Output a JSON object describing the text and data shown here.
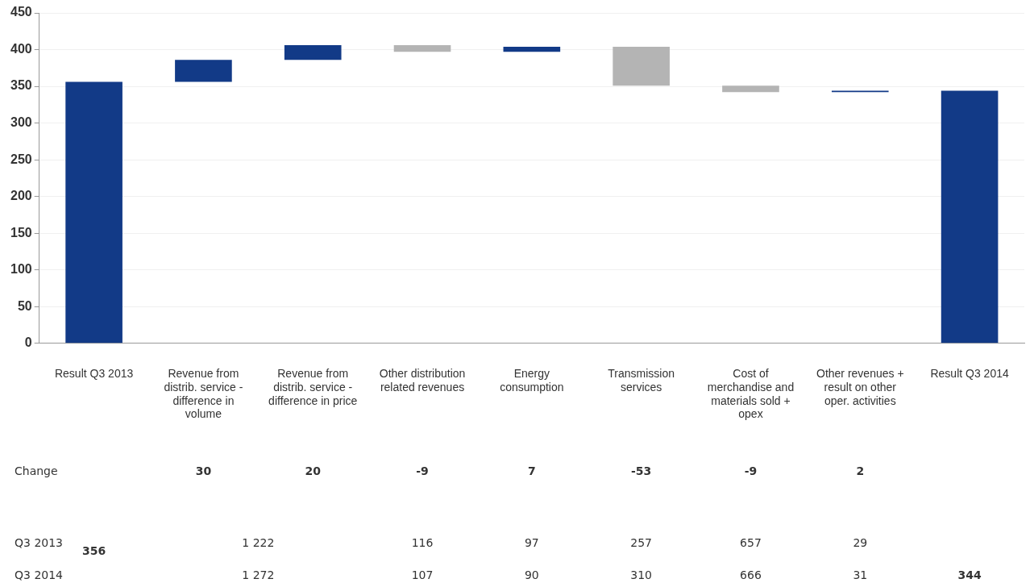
{
  "chart_data": {
    "type": "bar",
    "categories": [
      "Result Q3 2013",
      "Revenue from distrib. service - difference in volume",
      "Revenue from distrib. service - difference in price",
      "Other distribution related revenues",
      "Energy consumption",
      "Transmission services",
      "Cost of merchandise and materials sold + opex",
      "Other revenues + result on other oper. activities",
      "Result Q3 2014"
    ],
    "values": [
      356,
      30,
      20,
      -9,
      7,
      -53,
      -9,
      2,
      344
    ],
    "base": [
      0,
      356,
      386,
      406,
      397,
      404,
      351,
      342,
      0
    ],
    "colors": [
      "#123a87",
      "#123a87",
      "#123a87",
      "#b4b4b4",
      "#123a87",
      "#b4b4b4",
      "#b4b4b4",
      "#123a87",
      "#123a87"
    ],
    "annotations": [
      "Change",
      "Q3 2013",
      "Q3 2014",
      "30",
      "20",
      "-9",
      "7",
      "-53",
      "-9",
      "2",
      "356",
      "1 222",
      "116",
      "97",
      "257",
      "657",
      "29",
      "1 272",
      "107",
      "90",
      "310",
      "666",
      "31",
      "344"
    ],
    "ylim": [
      0,
      450
    ],
    "yticks": [
      0,
      50,
      100,
      150,
      200,
      250,
      300,
      350,
      400,
      450
    ],
    "grid": "y"
  }
}
